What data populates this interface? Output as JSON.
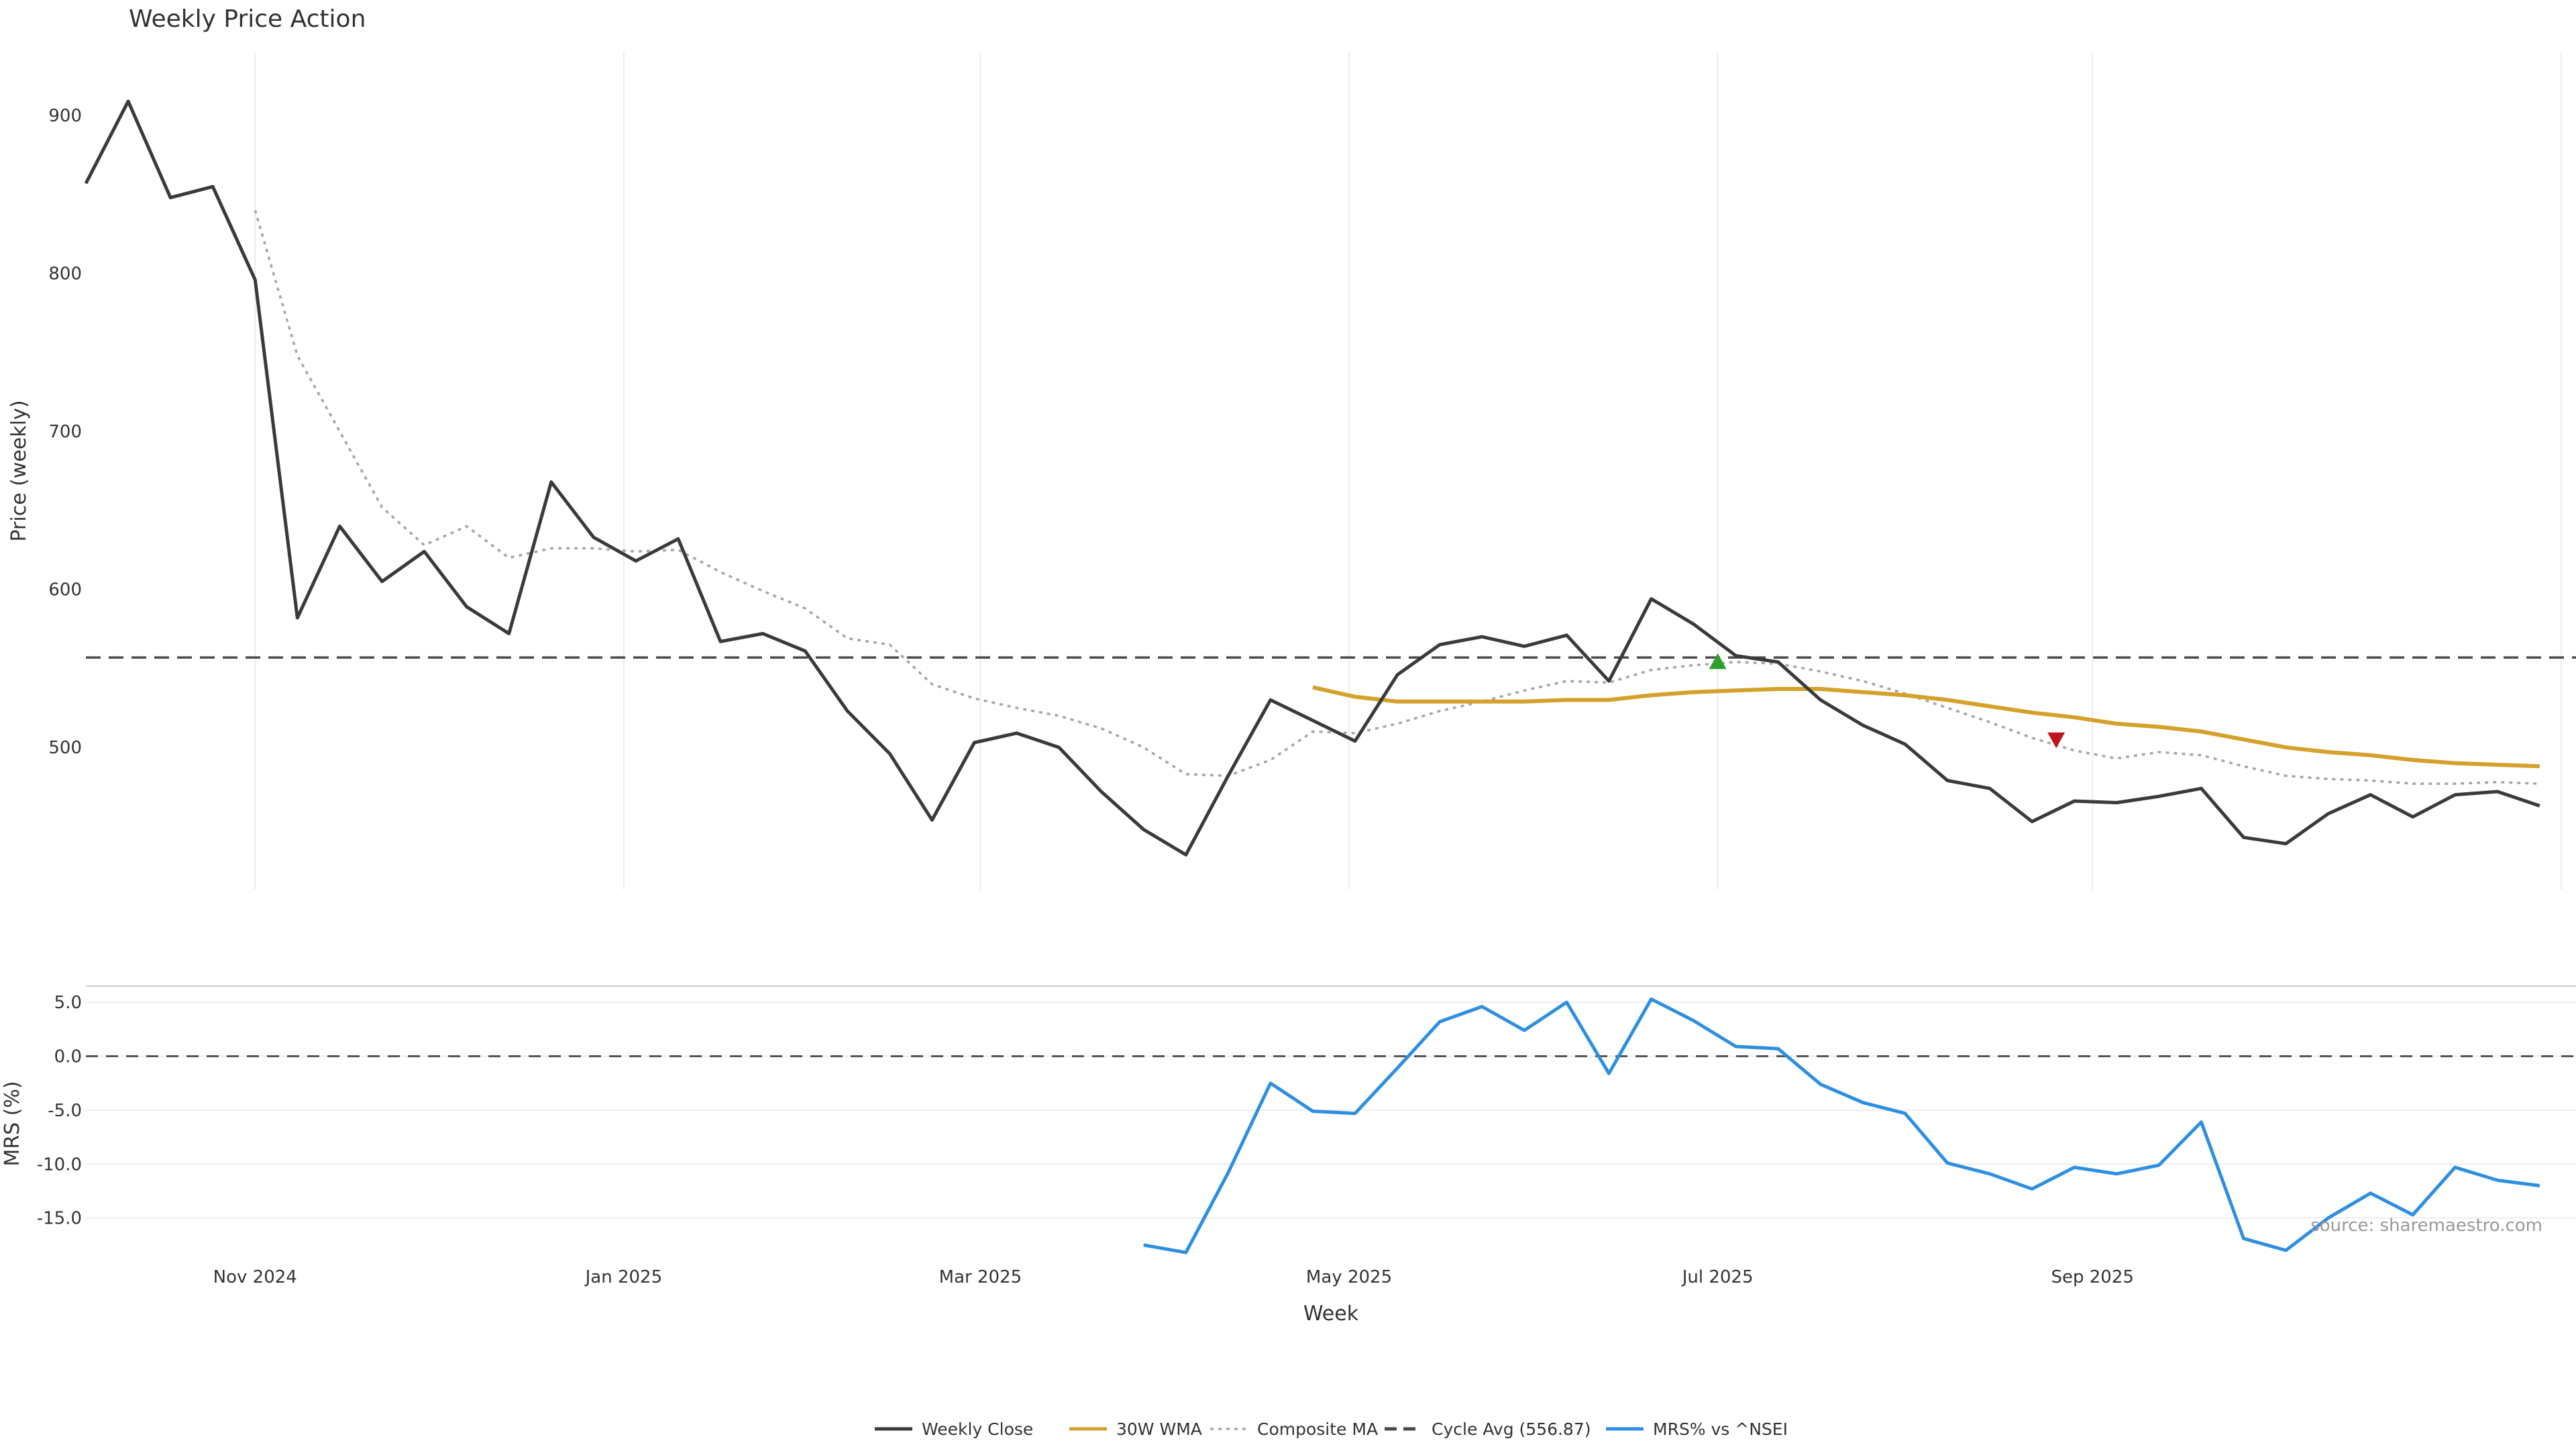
{
  "chart_data": {
    "type": "line",
    "title": "Weekly Price Action",
    "x_label": "Week",
    "x_ticks": [
      "Nov 2024",
      "Jan 2025",
      "Mar 2025",
      "May 2025",
      "Jul 2025",
      "Sep 2025"
    ],
    "x_tick_dates": [
      "2024-11-01",
      "2025-01-01",
      "2025-03-01",
      "2025-05-01",
      "2025-07-01",
      "2025-09-01"
    ],
    "x_range": [
      "2024-10-04",
      "2025-11-20"
    ],
    "grid": "vertical",
    "legend_position": "bottom-center",
    "source_note": "source: sharemaestro.com",
    "price_panel": {
      "ylabel": "Price (weekly)",
      "y_ticks": [
        900,
        800,
        700,
        600,
        500
      ],
      "ylim": [
        410,
        940
      ],
      "dates": [
        "2024-10-04",
        "2024-10-11",
        "2024-10-18",
        "2024-10-25",
        "2024-11-01",
        "2024-11-08",
        "2024-11-15",
        "2024-11-22",
        "2024-11-29",
        "2024-12-06",
        "2024-12-13",
        "2024-12-20",
        "2024-12-27",
        "2025-01-03",
        "2025-01-10",
        "2025-01-17",
        "2025-01-24",
        "2025-01-31",
        "2025-02-07",
        "2025-02-14",
        "2025-02-21",
        "2025-02-28",
        "2025-03-07",
        "2025-03-14",
        "2025-03-21",
        "2025-03-28",
        "2025-04-04",
        "2025-04-11",
        "2025-04-18",
        "2025-04-25",
        "2025-05-02",
        "2025-05-09",
        "2025-05-16",
        "2025-05-23",
        "2025-05-30",
        "2025-06-06",
        "2025-06-13",
        "2025-06-20",
        "2025-06-27",
        "2025-07-04",
        "2025-07-11",
        "2025-07-18",
        "2025-07-25",
        "2025-08-01",
        "2025-08-08",
        "2025-08-15",
        "2025-08-22",
        "2025-08-29",
        "2025-09-05",
        "2025-09-12",
        "2025-09-19",
        "2025-09-26",
        "2025-10-03",
        "2025-10-10",
        "2025-10-17",
        "2025-10-24",
        "2025-10-31",
        "2025-11-07",
        "2025-11-14"
      ],
      "series": [
        {
          "name": "Weekly Close",
          "color": "#3a3a3a",
          "style": "solid",
          "values": [
            857,
            909,
            848,
            855,
            796,
            582,
            640,
            605,
            624,
            589,
            572,
            668,
            633,
            618,
            632,
            567,
            572,
            561,
            523,
            496,
            454,
            503,
            509,
            500,
            472,
            448,
            432,
            482,
            530,
            517,
            504,
            546,
            565,
            570,
            564,
            571,
            542,
            594,
            578,
            558,
            554,
            530,
            514,
            502,
            479,
            474,
            453,
            466,
            465,
            469,
            474,
            443,
            439,
            458,
            470,
            456,
            470,
            472,
            463
          ]
        },
        {
          "name": "30W WMA",
          "color": "#d4a12a",
          "style": "solid",
          "values": [
            null,
            null,
            null,
            null,
            null,
            null,
            null,
            null,
            null,
            null,
            null,
            null,
            null,
            null,
            null,
            null,
            null,
            null,
            null,
            null,
            null,
            null,
            null,
            null,
            null,
            null,
            null,
            null,
            null,
            538,
            532,
            529,
            529,
            529,
            529,
            530,
            530,
            533,
            535,
            536,
            537,
            537,
            535,
            533,
            530,
            526,
            522,
            519,
            515,
            513,
            510,
            505,
            500,
            497,
            495,
            492,
            490,
            489,
            488
          ]
        },
        {
          "name": "Composite MA",
          "color": "#a6a6a6",
          "style": "dotted",
          "values": [
            null,
            null,
            null,
            null,
            840,
            748,
            700,
            652,
            628,
            640,
            620,
            626,
            626,
            624,
            625,
            611,
            599,
            588,
            569,
            565,
            540,
            531,
            525,
            520,
            512,
            500,
            483,
            482,
            492,
            510,
            509,
            515,
            523,
            529,
            536,
            542,
            541,
            549,
            552,
            554,
            553,
            548,
            542,
            534,
            525,
            516,
            506,
            498,
            493,
            497,
            495,
            488,
            482,
            480,
            479,
            477,
            477,
            478,
            477
          ]
        }
      ],
      "cycle_avg": {
        "name": "Cycle Avg (556.87)",
        "value": 556.87,
        "color": "#4a4a4a"
      },
      "markers": [
        {
          "type": "buy",
          "shape": "triangle-up",
          "color": "#2ca02c",
          "x": "2025-07-01",
          "y": 554
        },
        {
          "type": "sell",
          "shape": "triangle-down",
          "color": "#c0151c",
          "x": "2025-08-26",
          "y": 505
        }
      ]
    },
    "mrs_panel": {
      "ylabel": "MRS (%)",
      "y_ticks": [
        "5.0",
        "0.0",
        "-5.0",
        "-10.0",
        "-15.0"
      ],
      "ylim": [
        -19,
        6.5
      ],
      "zero_line": 0,
      "series": {
        "name": "MRS% vs ^NSEI",
        "color": "#2e8fe0",
        "dates": [
          "2025-03-28",
          "2025-04-04",
          "2025-04-11",
          "2025-04-18",
          "2025-04-25",
          "2025-05-02",
          "2025-05-09",
          "2025-05-16",
          "2025-05-23",
          "2025-05-30",
          "2025-06-06",
          "2025-06-13",
          "2025-06-20",
          "2025-06-27",
          "2025-07-04",
          "2025-07-11",
          "2025-07-18",
          "2025-07-25",
          "2025-08-01",
          "2025-08-08",
          "2025-08-15",
          "2025-08-22",
          "2025-08-29",
          "2025-09-05",
          "2025-09-12",
          "2025-09-19",
          "2025-09-26",
          "2025-10-03",
          "2025-10-10",
          "2025-10-17",
          "2025-10-24",
          "2025-10-31",
          "2025-11-07",
          "2025-11-14"
        ],
        "values": [
          -17.5,
          -18.2,
          -10.8,
          -2.5,
          -5.1,
          -5.3,
          -1.1,
          3.2,
          4.6,
          2.4,
          5.0,
          -1.6,
          5.3,
          3.3,
          0.9,
          0.7,
          -2.6,
          -4.3,
          -5.3,
          -9.9,
          -10.9,
          -12.3,
          -10.3,
          -10.9,
          -10.1,
          -6.1,
          -16.9,
          -18.0,
          -15.0,
          -12.7,
          -14.7,
          -10.3,
          -11.5,
          -12.0
        ]
      }
    },
    "legend": [
      {
        "label": "Weekly Close",
        "color": "#3a3a3a",
        "style": "solid"
      },
      {
        "label": "30W WMA",
        "color": "#d4a12a",
        "style": "solid"
      },
      {
        "label": "Composite MA",
        "color": "#a6a6a6",
        "style": "dotted"
      },
      {
        "label": "Cycle Avg (556.87)",
        "color": "#4a4a4a",
        "style": "dashed"
      },
      {
        "label": "MRS% vs ^NSEI",
        "color": "#2e8fe0",
        "style": "solid"
      }
    ]
  }
}
